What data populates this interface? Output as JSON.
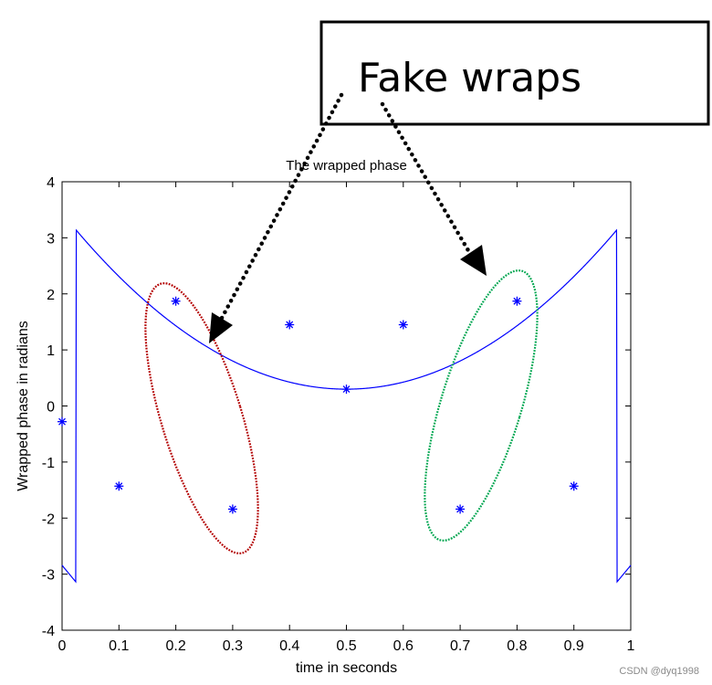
{
  "chart_data": {
    "type": "line",
    "title": "The wrapped phase",
    "xlabel": "time in seconds",
    "ylabel": "Wrapped phase in radians",
    "xlim": [
      0,
      1
    ],
    "ylim": [
      -4,
      4
    ],
    "xticks": [
      "0",
      "0.1",
      "0.2",
      "0.3",
      "0.4",
      "0.5",
      "0.6",
      "0.7",
      "0.8",
      "0.9",
      "1"
    ],
    "yticks": [
      "-4",
      "-3",
      "-2",
      "-1",
      "0",
      "1",
      "2",
      "3",
      "4"
    ],
    "grid": false,
    "line_color": "#0000ff",
    "series": [
      {
        "marker": "asterisk",
        "x": [
          0,
          0.1,
          0.2,
          0.3,
          0.4,
          0.5,
          0.6,
          0.7,
          0.8,
          0.9
        ],
        "y": [
          -0.28,
          -1.43,
          1.87,
          -1.84,
          1.45,
          0.3,
          1.45,
          -1.84,
          1.87,
          -1.43
        ]
      }
    ]
  },
  "annotation": {
    "text": "Fake wraps",
    "arrow_color": "#000000",
    "ellipse_left_color": "#b30000",
    "ellipse_right_color": "#00a650"
  },
  "watermark": "CSDN @dyq1998"
}
